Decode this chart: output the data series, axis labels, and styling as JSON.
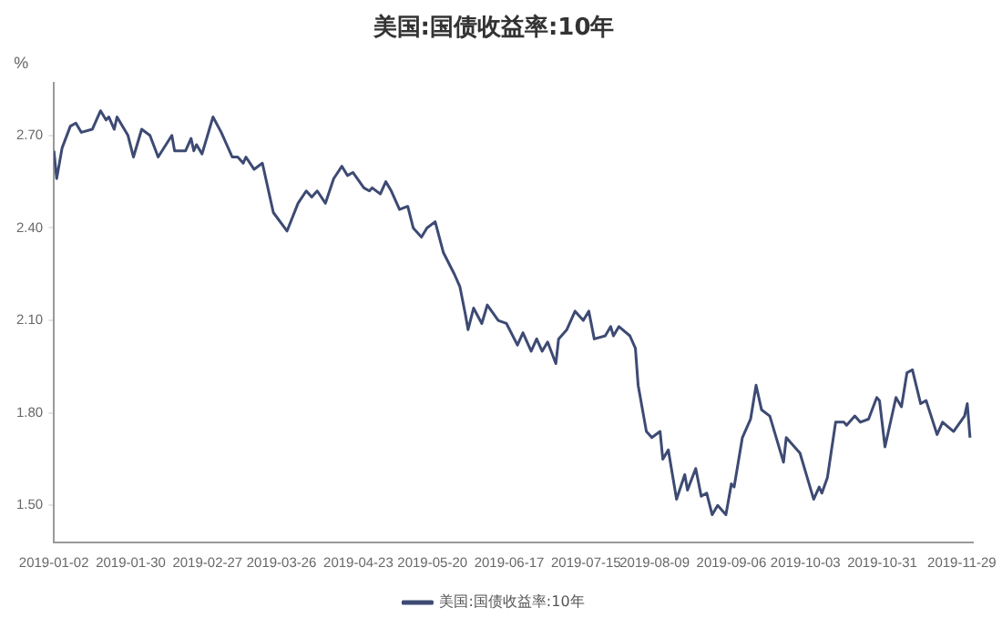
{
  "chart_data": {
    "type": "line",
    "title": "美国:国债收益率:10年",
    "ylabel": "%",
    "xlim": [
      "2019-01-02",
      "2019-12-03"
    ],
    "xticks": [
      "2019-01-02",
      "2019-01-30",
      "2019-02-27",
      "2019-03-26",
      "2019-04-23",
      "2019-05-20",
      "2019-06-17",
      "2019-07-15",
      "2019-08-09",
      "2019-09-06",
      "2019-10-03",
      "2019-10-31",
      "2019-11-29"
    ],
    "ylim": [
      1.38,
      2.87
    ],
    "yticks": [
      {
        "value": 1.5,
        "label": "1.50"
      },
      {
        "value": 1.8,
        "label": "1.80"
      },
      {
        "value": 2.1,
        "label": "2.10"
      },
      {
        "value": 2.4,
        "label": "2.40"
      },
      {
        "value": 2.7,
        "label": "2.70"
      }
    ],
    "grid": false,
    "legend": "bottom",
    "marker": "none",
    "line_style": "solid",
    "series": [
      {
        "name": "美国:国债收益率:10年",
        "color": "#3d4a73",
        "x": [
          "2019-01-02",
          "2019-01-03",
          "2019-01-05",
          "2019-01-08",
          "2019-01-10",
          "2019-01-12",
          "2019-01-16",
          "2019-01-19",
          "2019-01-21",
          "2019-01-22",
          "2019-01-24",
          "2019-01-25",
          "2019-01-29",
          "2019-01-31",
          "2019-02-03",
          "2019-02-06",
          "2019-02-09",
          "2019-02-14",
          "2019-02-15",
          "2019-02-19",
          "2019-02-21",
          "2019-02-22",
          "2019-02-23",
          "2019-02-25",
          "2019-03-01",
          "2019-03-04",
          "2019-03-08",
          "2019-03-10",
          "2019-03-12",
          "2019-03-13",
          "2019-03-16",
          "2019-03-19",
          "2019-03-21",
          "2019-03-23",
          "2019-03-28",
          "2019-04-01",
          "2019-04-04",
          "2019-04-06",
          "2019-04-08",
          "2019-04-11",
          "2019-04-14",
          "2019-04-17",
          "2019-04-19",
          "2019-04-21",
          "2019-04-25",
          "2019-04-27",
          "2019-04-28",
          "2019-05-01",
          "2019-05-03",
          "2019-05-05",
          "2019-05-08",
          "2019-05-11",
          "2019-05-13",
          "2019-05-16",
          "2019-05-18",
          "2019-05-21",
          "2019-05-24",
          "2019-05-28",
          "2019-05-30",
          "2019-06-01",
          "2019-06-02",
          "2019-06-04",
          "2019-06-07",
          "2019-06-09",
          "2019-06-13",
          "2019-06-16",
          "2019-06-20",
          "2019-06-22",
          "2019-06-25",
          "2019-06-27",
          "2019-06-29",
          "2019-07-01",
          "2019-07-04",
          "2019-07-05",
          "2019-07-08",
          "2019-07-11",
          "2019-07-14",
          "2019-07-16",
          "2019-07-18",
          "2019-07-22",
          "2019-07-24",
          "2019-07-25",
          "2019-07-27",
          "2019-07-31",
          "2019-08-02",
          "2019-08-03",
          "2019-08-06",
          "2019-08-08",
          "2019-08-11",
          "2019-08-12",
          "2019-08-14",
          "2019-08-17",
          "2019-08-20",
          "2019-08-21",
          "2019-08-24",
          "2019-08-26",
          "2019-08-28",
          "2019-08-30",
          "2019-09-01",
          "2019-09-04",
          "2019-09-06",
          "2019-09-07",
          "2019-09-10",
          "2019-09-13",
          "2019-09-15",
          "2019-09-17",
          "2019-09-20",
          "2019-09-22",
          "2019-09-25",
          "2019-09-26",
          "2019-09-29",
          "2019-10-01",
          "2019-10-03",
          "2019-10-06",
          "2019-10-08",
          "2019-10-09",
          "2019-10-11",
          "2019-10-14",
          "2019-10-17",
          "2019-10-18",
          "2019-10-21",
          "2019-10-23",
          "2019-10-26",
          "2019-10-29",
          "2019-10-30",
          "2019-11-01",
          "2019-11-05",
          "2019-11-07",
          "2019-11-09",
          "2019-11-11",
          "2019-11-14",
          "2019-11-16",
          "2019-11-20",
          "2019-11-22",
          "2019-11-26",
          "2019-11-30",
          "2019-12-01",
          "2019-12-02"
        ],
        "values": [
          2.65,
          2.56,
          2.66,
          2.73,
          2.74,
          2.71,
          2.72,
          2.78,
          2.75,
          2.76,
          2.72,
          2.76,
          2.7,
          2.63,
          2.72,
          2.7,
          2.63,
          2.7,
          2.65,
          2.65,
          2.69,
          2.65,
          2.67,
          2.64,
          2.76,
          2.71,
          2.63,
          2.63,
          2.61,
          2.63,
          2.59,
          2.61,
          2.53,
          2.45,
          2.39,
          2.48,
          2.52,
          2.5,
          2.52,
          2.48,
          2.56,
          2.6,
          2.57,
          2.58,
          2.53,
          2.52,
          2.53,
          2.51,
          2.55,
          2.52,
          2.46,
          2.47,
          2.4,
          2.37,
          2.4,
          2.42,
          2.32,
          2.25,
          2.21,
          2.12,
          2.07,
          2.14,
          2.09,
          2.15,
          2.1,
          2.09,
          2.02,
          2.06,
          2.0,
          2.04,
          2.0,
          2.03,
          1.96,
          2.04,
          2.07,
          2.13,
          2.1,
          2.13,
          2.04,
          2.05,
          2.08,
          2.05,
          2.08,
          2.05,
          2.01,
          1.89,
          1.74,
          1.72,
          1.74,
          1.65,
          1.68,
          1.52,
          1.6,
          1.55,
          1.62,
          1.53,
          1.54,
          1.47,
          1.5,
          1.47,
          1.57,
          1.56,
          1.72,
          1.78,
          1.89,
          1.81,
          1.79,
          1.73,
          1.64,
          1.72,
          1.69,
          1.67,
          1.61,
          1.52,
          1.56,
          1.54,
          1.59,
          1.77,
          1.77,
          1.76,
          1.79,
          1.77,
          1.78,
          1.85,
          1.84,
          1.69,
          1.85,
          1.82,
          1.93,
          1.94,
          1.83,
          1.84,
          1.73,
          1.77,
          1.74,
          1.79,
          1.83,
          1.72
        ]
      }
    ]
  }
}
